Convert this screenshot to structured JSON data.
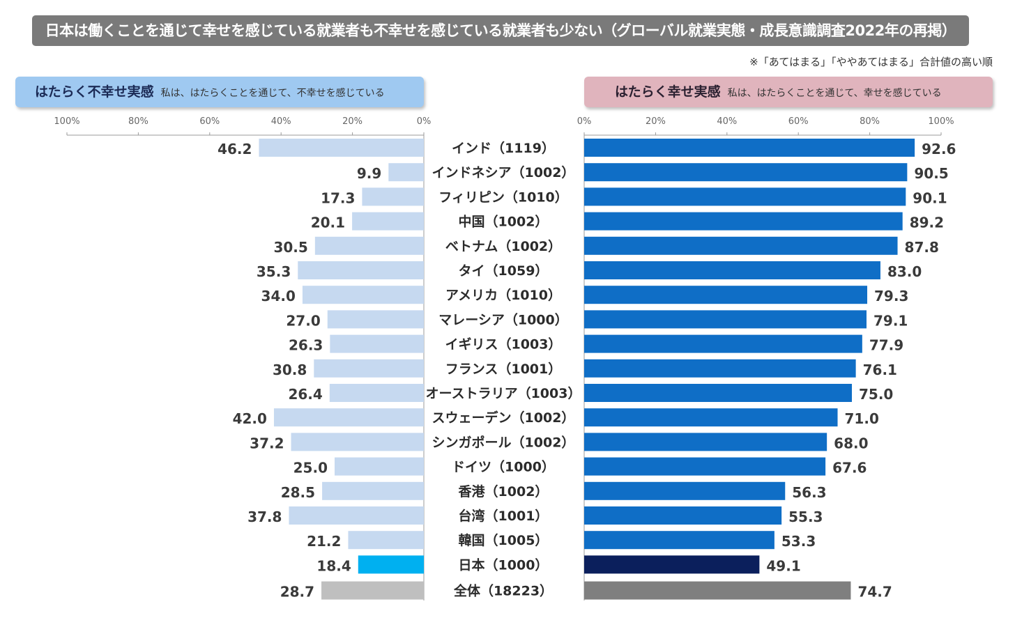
{
  "banner": {
    "title": "日本は働くことを通じて幸せを感じている就業者も不幸せを感じている就業者も少ない（グローバル就業実態・成長意識調査2022年の再掲）"
  },
  "note": "※「あてはまる」「ややあてはまる」合計値の高い順",
  "left_panel": {
    "title": "はたらく不幸せ実感",
    "subtitle": "私は、はたらくことを通じて、不幸せを感じている"
  },
  "right_panel": {
    "title": "はたらく幸せ実感",
    "subtitle": "私は、はたらくことを通じて、幸せを感じている"
  },
  "colors": {
    "left_bar": "#c6d9f0",
    "left_japan": "#00b0f0",
    "left_total": "#bfbfbf",
    "right_bar": "#0f6ec6",
    "right_japan": "#0b1f5c",
    "right_total": "#7f7f7f",
    "axis": "#999999",
    "label": "#3a3a3a"
  },
  "chart_data": [
    {
      "type": "bar",
      "orientation": "horizontal",
      "direction": "right-to-left",
      "title": "はたらく不幸せ実感",
      "categories": [
        "インド（1119）",
        "インドネシア（1002）",
        "フィリピン（1010）",
        "中国（1002）",
        "ベトナム（1002）",
        "タイ（1059）",
        "アメリカ（1010）",
        "マレーシア（1000）",
        "イギリス（1003）",
        "フランス（1001）",
        "オーストラリア（1003）",
        "スウェーデン（1002）",
        "シンガポール（1002）",
        "ドイツ（1000）",
        "香港（1002）",
        "台湾（1001）",
        "韓国（1005）",
        "日本（1000）",
        "全体（18223）"
      ],
      "values": [
        46.2,
        9.9,
        17.3,
        20.1,
        30.5,
        35.3,
        34.0,
        27.0,
        26.3,
        30.8,
        26.4,
        42.0,
        37.2,
        25.0,
        28.5,
        37.8,
        21.2,
        18.4,
        28.7
      ],
      "xlim": [
        0,
        100
      ],
      "ticks": [
        "100%",
        "80%",
        "60%",
        "40%",
        "20%",
        "0%"
      ]
    },
    {
      "type": "bar",
      "orientation": "horizontal",
      "direction": "left-to-right",
      "title": "はたらく幸せ実感",
      "categories": [
        "インド（1119）",
        "インドネシア（1002）",
        "フィリピン（1010）",
        "中国（1002）",
        "ベトナム（1002）",
        "タイ（1059）",
        "アメリカ（1010）",
        "マレーシア（1000）",
        "イギリス（1003）",
        "フランス（1001）",
        "オーストラリア（1003）",
        "スウェーデン（1002）",
        "シンガポール（1002）",
        "ドイツ（1000）",
        "香港（1002）",
        "台湾（1001）",
        "韓国（1005）",
        "日本（1000）",
        "全体（18223）"
      ],
      "values": [
        92.6,
        90.5,
        90.1,
        89.2,
        87.8,
        83.0,
        79.3,
        79.1,
        77.9,
        76.1,
        75.0,
        71.0,
        68.0,
        67.6,
        56.3,
        55.3,
        53.3,
        49.1,
        74.7
      ],
      "xlim": [
        0,
        100
      ],
      "ticks": [
        "0%",
        "20%",
        "40%",
        "60%",
        "80%",
        "100%"
      ]
    }
  ]
}
